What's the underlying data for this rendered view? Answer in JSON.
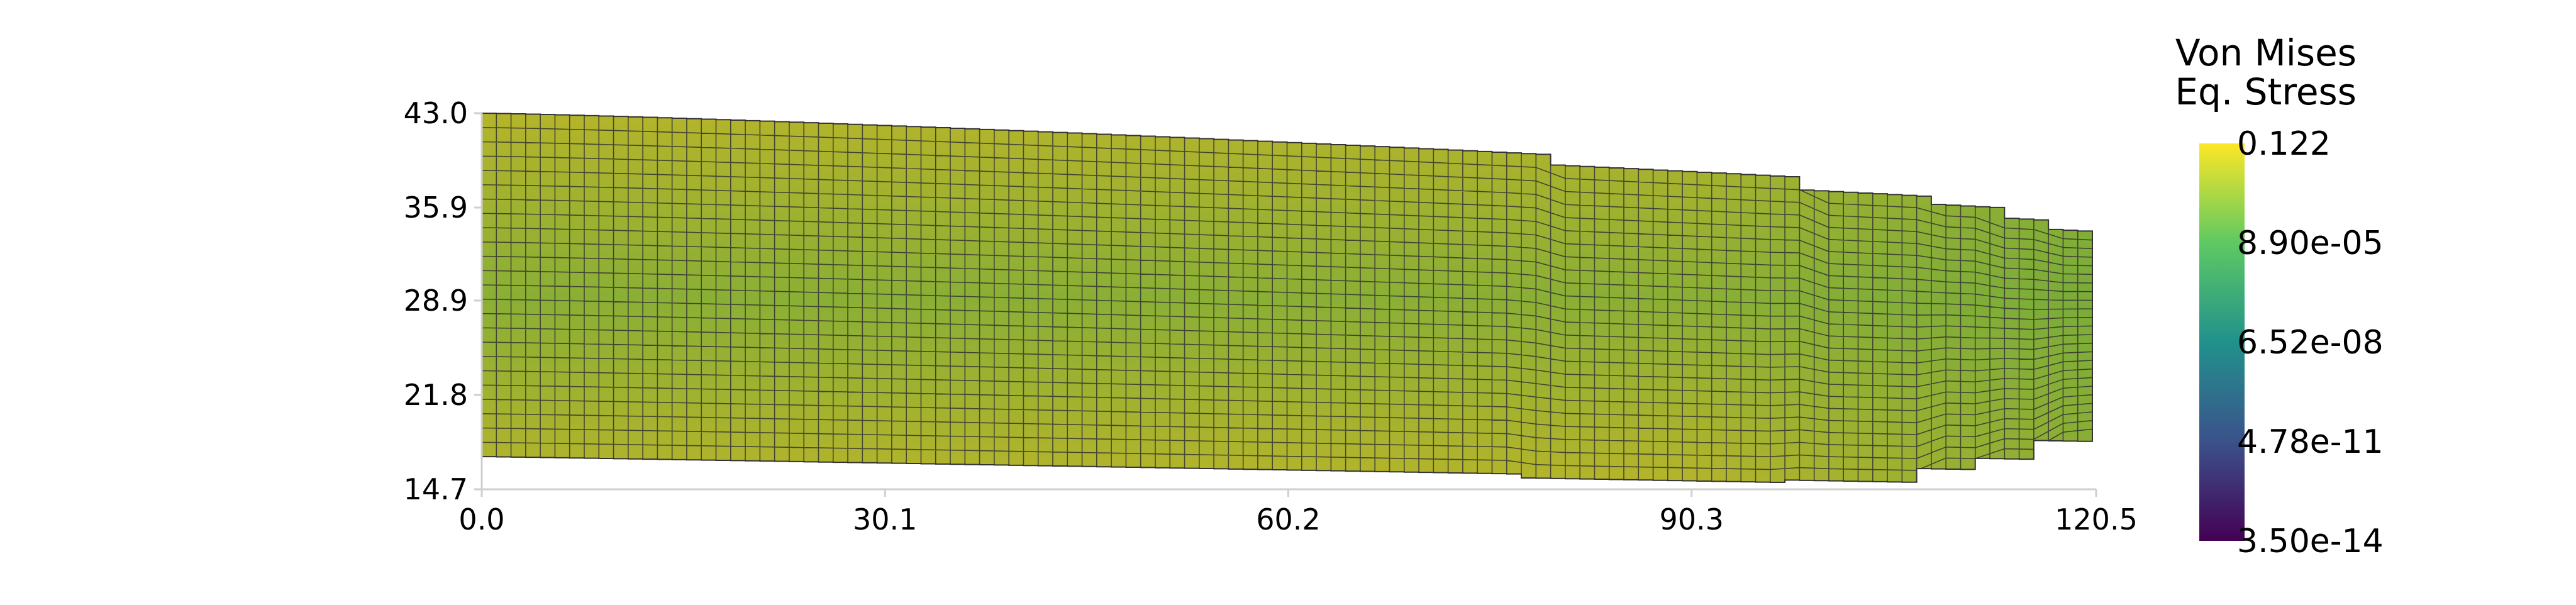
{
  "plot": {
    "x_ticks": [
      "0.0",
      "30.1",
      "60.2",
      "90.3",
      "120.5"
    ],
    "y_ticks": [
      "43.0",
      "35.9",
      "28.9",
      "21.8",
      "14.7"
    ],
    "x_range": [
      0.0,
      120.5
    ],
    "y_range": [
      14.7,
      43.0
    ]
  },
  "legend": {
    "title_line1": "Von Mises",
    "title_line2": "Eq. Stress",
    "labels": [
      "0.122",
      "8.90e-05",
      "6.52e-08",
      "4.78e-11",
      "3.50e-14"
    ],
    "colormap": [
      "#440154",
      "#3b528b",
      "#21918c",
      "#5ec962",
      "#fde725"
    ]
  },
  "mesh": {
    "fill_color": "#b4b42a",
    "center_color": "#8aaf35",
    "tip_color": "#6eaa3c",
    "line_color": "#333333"
  }
}
